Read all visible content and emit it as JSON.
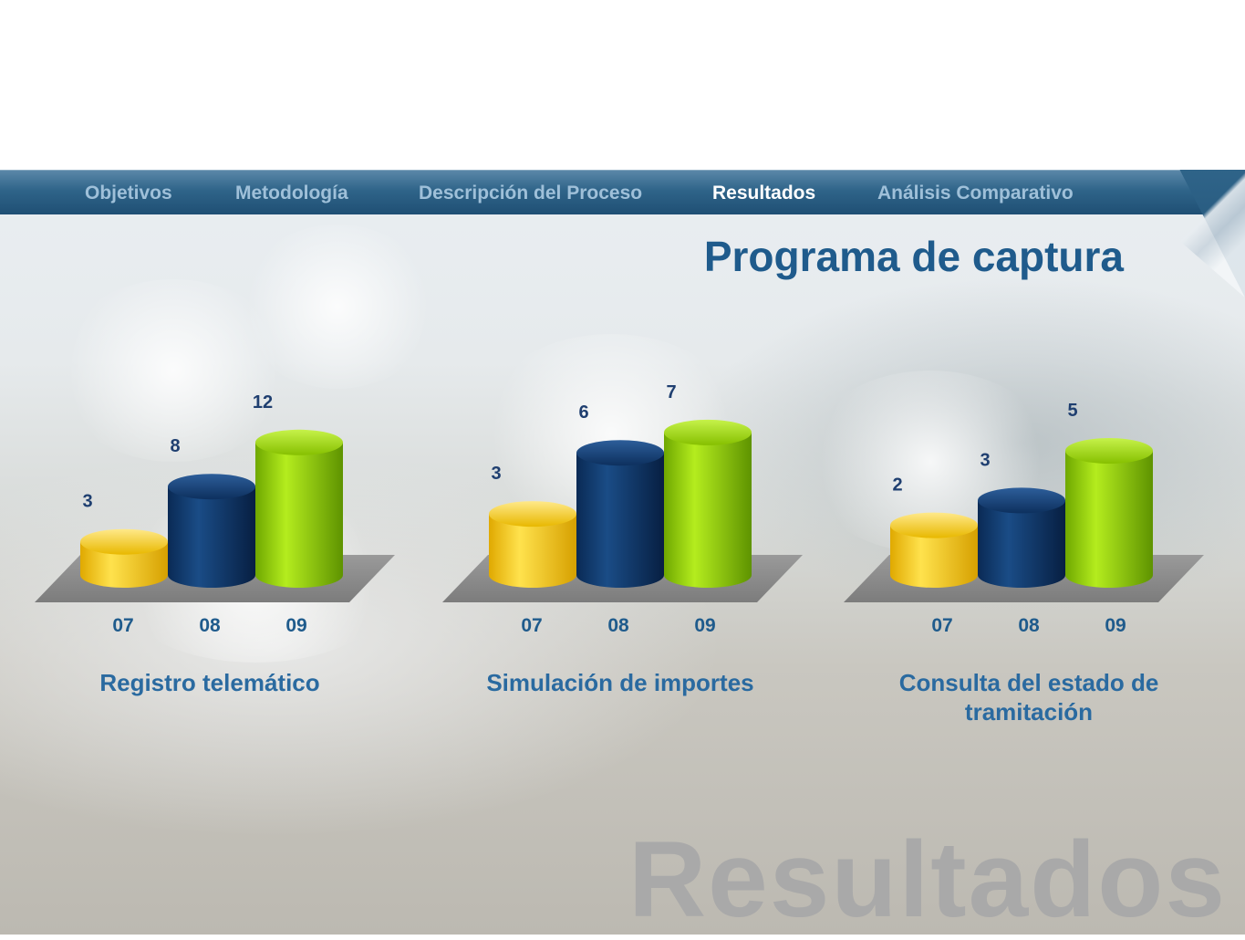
{
  "nav": {
    "items": [
      {
        "label": "Objetivos",
        "active": false
      },
      {
        "label": "Metodología",
        "active": false
      },
      {
        "label": "Descripción del Proceso",
        "active": false
      },
      {
        "label": "Resultados",
        "active": true
      },
      {
        "label": "Análisis Comparativo",
        "active": false
      }
    ]
  },
  "page": {
    "title": "Programa de captura",
    "watermark": "Resultados"
  },
  "colors": {
    "year07": "#f5c400",
    "year08": "#0f3566",
    "year09": "#8cc800",
    "floor": "#8a8a8a",
    "nav_active": "#ffffff",
    "nav_inactive": "#9fc0d9",
    "title": "#1f5b8c"
  },
  "chart_data": [
    {
      "type": "bar",
      "title": "Registro telemático",
      "categories": [
        "07",
        "08",
        "09"
      ],
      "values": [
        3,
        8,
        12
      ]
    },
    {
      "type": "bar",
      "title": "Simulación de importes",
      "categories": [
        "07",
        "08",
        "09"
      ],
      "values": [
        3,
        6,
        7
      ]
    },
    {
      "type": "bar",
      "title": "Consulta del estado de tramitación",
      "categories": [
        "07",
        "08",
        "09"
      ],
      "values": [
        2,
        3,
        5
      ]
    }
  ]
}
